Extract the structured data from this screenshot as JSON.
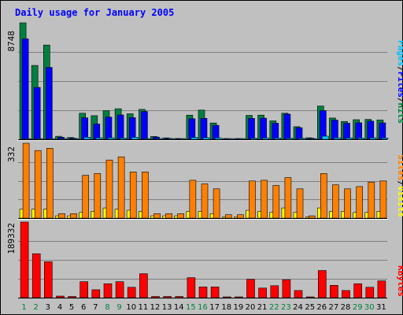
{
  "colors": {
    "frame": "#c0c0c0",
    "plot_bg": "#c0c0c0",
    "grid": "#808080",
    "title": "#0000ff",
    "hits": "#008040",
    "files": "#0000ff",
    "pages": "#00c0ff",
    "visits": "#ffff00",
    "sites": "#ff8000",
    "kbytes": "#ff0000",
    "weekend_label": "#008040",
    "weekday_label": "#000000",
    "separator": "#ffffff"
  },
  "chart_data": {
    "type": "bar",
    "title": "Daily usage for January 2005",
    "categories": [
      "1",
      "2",
      "3",
      "4",
      "5",
      "6",
      "7",
      "8",
      "9",
      "10",
      "11",
      "12",
      "13",
      "14",
      "15",
      "16",
      "17",
      "18",
      "19",
      "20",
      "21",
      "22",
      "23",
      "24",
      "25",
      "26",
      "27",
      "28",
      "29",
      "30",
      "31"
    ],
    "weekend_days": [
      1,
      2,
      8,
      9,
      15,
      16,
      22,
      23,
      29,
      30
    ],
    "panels": [
      {
        "id": "top",
        "ymax_label": "8748",
        "ylim": [
          0,
          8748
        ],
        "legend": [
          "Pages",
          "/",
          "Files",
          "/",
          "Hits"
        ],
        "legend_colors": [
          "pages",
          "black",
          "files",
          "black",
          "hits"
        ],
        "series": [
          {
            "name": "Hits",
            "color": "hits",
            "values": [
              8748,
              5550,
              7080,
              230,
              140,
              1960,
              1780,
              2150,
              2300,
              1920,
              2250,
              220,
              110,
              70,
              1820,
              2200,
              1230,
              40,
              40,
              1800,
              1820,
              1390,
              1960,
              950,
              120,
              2500,
              1600,
              1350,
              1480,
              1500,
              1460
            ]
          },
          {
            "name": "Files",
            "color": "files",
            "values": [
              7550,
              3900,
              5400,
              160,
              90,
              1620,
              1150,
              1670,
              1830,
              1630,
              2100,
              170,
              80,
              40,
              1550,
              1580,
              1050,
              30,
              30,
              1580,
              1590,
              1220,
              1900,
              880,
              90,
              2160,
              1450,
              1210,
              1250,
              1370,
              1240
            ]
          },
          {
            "name": "Pages",
            "color": "pages",
            "values": [
              60,
              60,
              60,
              30,
              20,
              160,
              120,
              120,
              100,
              160,
              60,
              30,
              20,
              10,
              150,
              130,
              120,
              10,
              10,
              90,
              110,
              100,
              90,
              80,
              20,
              240,
              120,
              110,
              100,
              120,
              100
            ]
          }
        ]
      },
      {
        "id": "middle",
        "ymax_label": "332",
        "ylim": [
          0,
          332
        ],
        "legend": [
          "Sites",
          "/",
          "Visits"
        ],
        "legend_colors": [
          "sites",
          "black",
          "visits"
        ],
        "series": [
          {
            "name": "Visits",
            "color": "visits",
            "values": [
              40,
              40,
              40,
              10,
              10,
              25,
              30,
              45,
              40,
              35,
              30,
              10,
              10,
              10,
              30,
              30,
              20,
              5,
              5,
              35,
              30,
              25,
              45,
              25,
              5,
              45,
              30,
              30,
              25,
              25,
              30
            ]
          },
          {
            "name": "Sites",
            "color": "sites",
            "values": [
              332,
              300,
              310,
              20,
              20,
              190,
              198,
              258,
              272,
              205,
              205,
              20,
              20,
              20,
              168,
              152,
              130,
              15,
              15,
              165,
              168,
              145,
              180,
              130,
              10,
              198,
              148,
              130,
              140,
              160,
              165
            ]
          }
        ]
      },
      {
        "id": "bottom",
        "ymax_label": "189332",
        "ylim": [
          0,
          189332
        ],
        "legend": [
          "KBytes"
        ],
        "legend_colors": [
          "kbytes"
        ],
        "series": [
          {
            "name": "KBytes",
            "color": "kbytes",
            "values": [
              189332,
              110000,
              90000,
              4000,
              3000,
              40000,
              20000,
              35000,
              40000,
              26000,
              60000,
              3000,
              3000,
              3000,
              50000,
              27000,
              27000,
              2000,
              2000,
              46000,
              24000,
              30000,
              45000,
              18000,
              2000,
              68000,
              31000,
              18000,
              35000,
              26000,
              42000
            ]
          }
        ]
      }
    ]
  }
}
